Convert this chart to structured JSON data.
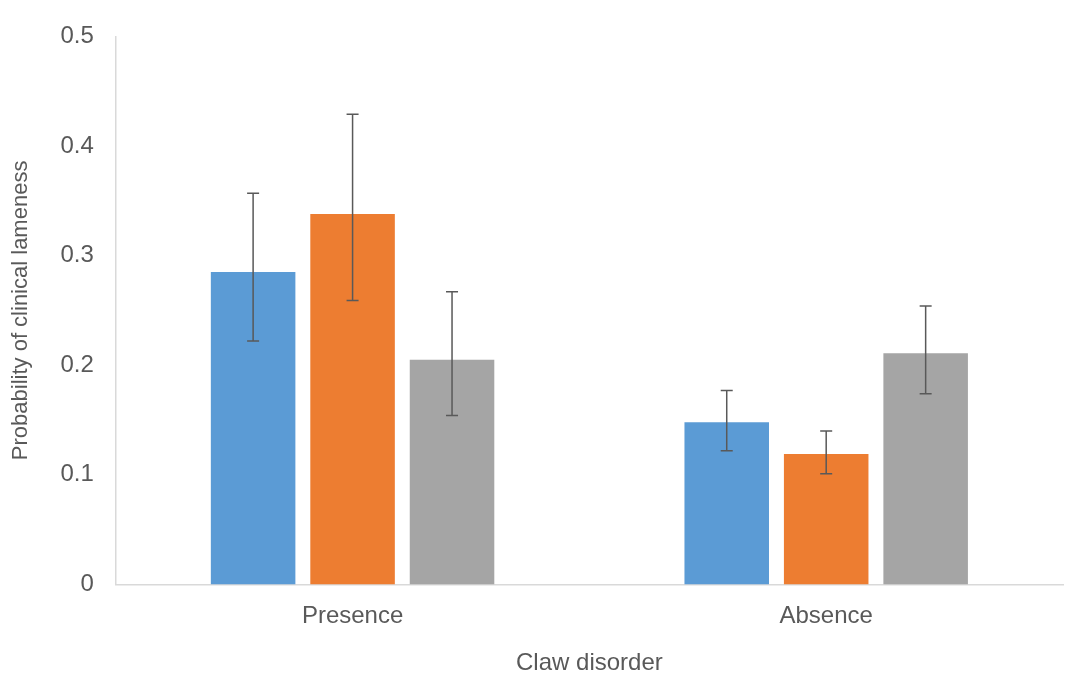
{
  "chart_data": {
    "type": "bar",
    "xlabel": "Claw disorder",
    "ylabel": "Probability of clinical lameness",
    "categories": [
      "Presence",
      "Absence"
    ],
    "series": [
      {
        "color": "#5b9bd5",
        "values": [
          0.285,
          0.148
        ],
        "errors": [
          [
            0.222,
            0.357
          ],
          [
            0.122,
            0.177
          ]
        ]
      },
      {
        "color": "#ed7d31",
        "values": [
          0.338,
          0.119
        ],
        "errors": [
          [
            0.259,
            0.429
          ],
          [
            0.101,
            0.14
          ]
        ]
      },
      {
        "color": "#a5a5a5",
        "values": [
          0.205,
          0.211
        ],
        "errors": [
          [
            0.154,
            0.267
          ],
          [
            0.174,
            0.254
          ]
        ]
      }
    ],
    "ylim": [
      0,
      0.5
    ],
    "yticks": [
      0,
      0.1,
      0.2,
      0.3,
      0.4,
      0.5
    ],
    "grid": false,
    "legend": false
  }
}
